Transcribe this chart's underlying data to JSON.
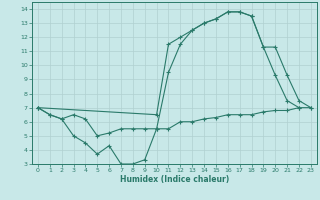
{
  "xlabel": "Humidex (Indice chaleur)",
  "bg_color": "#c8e8e8",
  "line_color": "#2a7a6a",
  "grid_color": "#b0d0d0",
  "xlim": [
    -0.5,
    23.5
  ],
  "ylim": [
    3,
    14.5
  ],
  "xticks": [
    0,
    1,
    2,
    3,
    4,
    5,
    6,
    7,
    8,
    9,
    10,
    11,
    12,
    13,
    14,
    15,
    16,
    17,
    18,
    19,
    20,
    21,
    22,
    23
  ],
  "yticks": [
    3,
    4,
    5,
    6,
    7,
    8,
    9,
    10,
    11,
    12,
    13,
    14
  ],
  "line1_x": [
    0,
    1,
    2,
    3,
    4,
    5,
    6,
    7,
    8,
    9,
    10,
    11,
    12,
    13,
    14,
    15,
    16,
    17,
    18,
    19,
    20,
    21,
    22
  ],
  "line1_y": [
    7,
    6.5,
    6.2,
    5.0,
    4.5,
    3.7,
    4.3,
    3.0,
    3.0,
    3.3,
    5.5,
    9.5,
    11.5,
    12.5,
    13.0,
    13.3,
    13.8,
    13.8,
    13.5,
    11.3,
    9.3,
    7.5,
    7.0
  ],
  "line2_x": [
    0,
    1,
    2,
    3,
    4,
    5,
    6,
    7,
    8,
    9,
    10,
    11,
    12,
    13,
    14,
    15,
    16,
    17,
    18,
    19,
    20,
    21,
    22,
    23
  ],
  "line2_y": [
    7,
    6.5,
    6.2,
    6.5,
    6.2,
    5.0,
    5.2,
    5.5,
    5.5,
    5.5,
    5.5,
    5.5,
    6.0,
    6.0,
    6.2,
    6.3,
    6.5,
    6.5,
    6.5,
    6.7,
    6.8,
    6.8,
    7.0,
    7.0
  ],
  "line3_x": [
    0,
    10,
    11,
    12,
    13,
    14,
    15,
    16,
    17,
    18,
    19,
    20,
    21,
    22,
    23
  ],
  "line3_y": [
    7,
    6.5,
    11.5,
    12.0,
    12.5,
    13.0,
    13.3,
    13.8,
    13.8,
    13.5,
    11.3,
    11.3,
    9.3,
    7.5,
    7.0
  ]
}
